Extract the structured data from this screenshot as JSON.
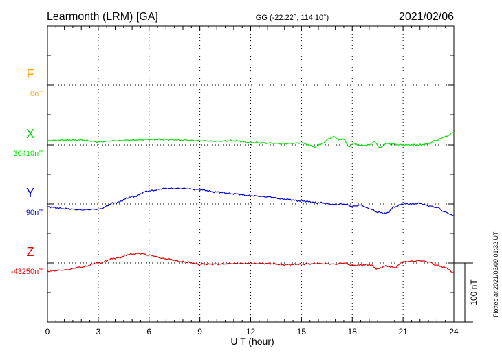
{
  "chart_data": {
    "type": "line",
    "title": "Learmonth (LRM)  [GA]",
    "subtitle": "GG (-22.22°, 114.10°)",
    "date": "2021/02/06",
    "xlabel": "U T (hour)",
    "xlim": [
      0,
      24
    ],
    "xticks": [
      "0",
      "3",
      "6",
      "9",
      "12",
      "15",
      "18",
      "21",
      "24"
    ],
    "scale_label": "100 nT",
    "footer": "Plotted at 2021/03/09 01:32 UT",
    "grid": true,
    "series": [
      {
        "name": "F",
        "baseline": "0nT",
        "color": "#ffa500",
        "x": [],
        "y": []
      },
      {
        "name": "X",
        "baseline": "30410nT",
        "color": "#00e000",
        "x": [
          0,
          1,
          2,
          3,
          4,
          5,
          6,
          7,
          8,
          9,
          10,
          11,
          12,
          13,
          14,
          15,
          15.8,
          16.3,
          16.6,
          16.9,
          17.2,
          17.5,
          17.8,
          18.1,
          18.5,
          19,
          19.3,
          19.6,
          20,
          21,
          22,
          22.5,
          23,
          23.5,
          24
        ],
        "y": [
          7,
          8,
          8,
          5,
          7,
          8,
          9,
          9,
          8,
          7,
          6,
          7,
          4,
          3,
          2,
          3,
          -3,
          3,
          10,
          15,
          8,
          10,
          -3,
          2,
          -1,
          0,
          6,
          -5,
          2,
          0,
          0,
          2,
          8,
          14,
          21
        ]
      },
      {
        "name": "Y",
        "baseline": "90nT",
        "color": "#0000cc",
        "x": [
          0,
          1,
          2,
          3,
          4,
          5,
          6,
          7,
          8,
          9,
          10,
          11,
          12,
          13,
          14,
          15,
          16,
          17,
          17.5,
          18,
          18.5,
          19,
          19.5,
          20,
          20.5,
          21,
          21.5,
          22,
          22.5,
          23,
          23.5,
          24
        ],
        "y": [
          -5,
          -8,
          -10,
          -9,
          2,
          12,
          22,
          26,
          26,
          24,
          20,
          17,
          14,
          12,
          8,
          5,
          2,
          -1,
          0,
          -4,
          -2,
          -8,
          -14,
          -16,
          -5,
          0,
          0,
          1,
          -3,
          -6,
          -14,
          -20
        ]
      },
      {
        "name": "Z",
        "baseline": "-43250nT",
        "color": "#dd0000",
        "x": [
          0,
          1,
          2,
          3,
          4,
          5,
          5.5,
          6,
          7,
          8,
          9,
          10,
          11,
          12,
          13,
          14,
          15,
          16,
          17,
          17.5,
          18,
          19,
          19.5,
          20,
          20.5,
          21,
          21.5,
          22,
          22.5,
          23,
          23.5,
          24
        ],
        "y": [
          -14,
          -12,
          -7,
          0,
          8,
          15,
          16,
          13,
          7,
          2,
          -2,
          -2,
          -1,
          -1,
          -1,
          -3,
          -2,
          -1,
          -2,
          0,
          -4,
          -3,
          -10,
          -5,
          -8,
          2,
          3,
          4,
          2,
          -4,
          -8,
          -17
        ]
      }
    ]
  }
}
